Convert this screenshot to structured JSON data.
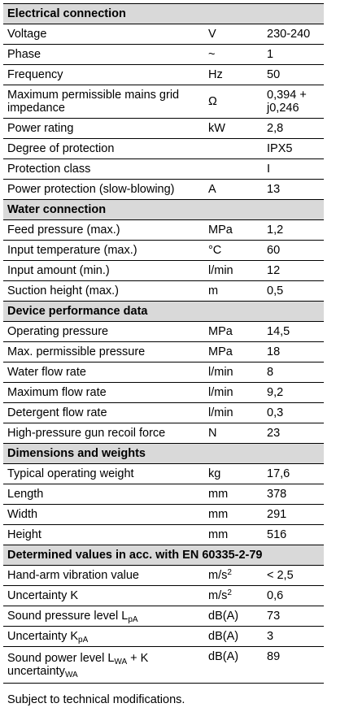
{
  "sections": {
    "electrical": "Electrical connection",
    "water": "Water connection",
    "performance": "Device performance data",
    "dimensions": "Dimensions and weights",
    "determined": "Determined values in acc. with EN 60335-2-79"
  },
  "rows": {
    "voltage": {
      "label": "Voltage",
      "unit": "V",
      "value": "230-240"
    },
    "phase": {
      "label": "Phase",
      "unit": "~",
      "value": "1"
    },
    "frequency": {
      "label": "Frequency",
      "unit": "Hz",
      "value": "50"
    },
    "impedance": {
      "label": "Maximum permissible mains grid impedance",
      "unit": "Ω",
      "value": "0,394 + j0,246"
    },
    "power_rating": {
      "label": "Power rating",
      "unit": "kW",
      "value": "2,8"
    },
    "degree_protection": {
      "label": "Degree of protection",
      "unit": "",
      "value": "IPX5"
    },
    "protection_class": {
      "label": "Protection class",
      "unit": "",
      "value": "I"
    },
    "power_protection": {
      "label": "Power protection (slow-blowing)",
      "unit": "A",
      "value": "13"
    },
    "feed_pressure": {
      "label": "Feed pressure (max.)",
      "unit": "MPa",
      "value": "1,2"
    },
    "input_temperature": {
      "label": "Input temperature (max.)",
      "unit": "°C",
      "value": "60"
    },
    "input_amount": {
      "label": "Input amount (min.)",
      "unit": "l/min",
      "value": "12"
    },
    "suction_height": {
      "label": "Suction height (max.)",
      "unit": "m",
      "value": "0,5"
    },
    "operating_pressure": {
      "label": "Operating pressure",
      "unit": "MPa",
      "value": "14,5"
    },
    "max_pressure": {
      "label": "Max. permissible pressure",
      "unit": "MPa",
      "value": "18"
    },
    "water_flow": {
      "label": "Water flow rate",
      "unit": "l/min",
      "value": "8"
    },
    "max_flow": {
      "label": "Maximum flow rate",
      "unit": "l/min",
      "value": "9,2"
    },
    "detergent_flow": {
      "label": "Detergent flow rate",
      "unit": "l/min",
      "value": "0,3"
    },
    "recoil_force": {
      "label": "High-pressure gun recoil force",
      "unit": "N",
      "value": "23"
    },
    "weight": {
      "label": "Typical operating weight",
      "unit": "kg",
      "value": "17,6"
    },
    "length": {
      "label": "Length",
      "unit": "mm",
      "value": "378"
    },
    "width": {
      "label": "Width",
      "unit": "mm",
      "value": "291"
    },
    "height": {
      "label": "Height",
      "unit": "mm",
      "value": "516"
    },
    "vibration": {
      "label": "Hand-arm vibration value",
      "unit_base": "m/s",
      "unit_sup": "2",
      "value": "< 2,5"
    },
    "uncertainty_k": {
      "label": "Uncertainty K",
      "unit_base": "m/s",
      "unit_sup": "2",
      "value": "0,6"
    },
    "sound_pressure": {
      "label_base": "Sound pressure level L",
      "label_sub": "pA",
      "unit": "dB(A)",
      "value": "73"
    },
    "uncertainty_kpa": {
      "label_base": "Uncertainty K",
      "label_sub": "pA",
      "unit": "dB(A)",
      "value": "3"
    },
    "sound_power": {
      "label_line1_base": "Sound power level L",
      "label_line1_sub": "WA",
      "label_line1_tail": " + K",
      "label_line2_base": "uncertainty",
      "label_line2_sub": "WA",
      "unit": "dB(A)",
      "value": "89"
    }
  },
  "footnote": "Subject to technical modifications."
}
